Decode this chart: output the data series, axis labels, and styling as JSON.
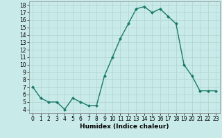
{
  "x": [
    0,
    1,
    2,
    3,
    4,
    5,
    6,
    7,
    8,
    9,
    10,
    11,
    12,
    13,
    14,
    15,
    16,
    17,
    18,
    19,
    20,
    21,
    22,
    23
  ],
  "y": [
    7,
    5.5,
    5,
    5,
    4,
    5.5,
    5,
    4.5,
    4.5,
    8.5,
    11,
    13.5,
    15.5,
    17.5,
    17.8,
    17,
    17.5,
    16.5,
    15.5,
    10,
    8.5,
    6.5,
    6.5,
    6.5
  ],
  "line_color": "#1a7a6a",
  "marker": "D",
  "markersize": 2.0,
  "linewidth": 1.0,
  "bg_color": "#c8eae8",
  "grid_color": "#b0d4d0",
  "xlim": [
    -0.5,
    23.5
  ],
  "ylim": [
    3.5,
    18.5
  ],
  "yticks": [
    4,
    5,
    6,
    7,
    8,
    9,
    10,
    11,
    12,
    13,
    14,
    15,
    16,
    17,
    18
  ],
  "xticks": [
    0,
    1,
    2,
    3,
    4,
    5,
    6,
    7,
    8,
    9,
    10,
    11,
    12,
    13,
    14,
    15,
    16,
    17,
    18,
    19,
    20,
    21,
    22,
    23
  ],
  "xlabel": "Humidex (Indice chaleur)",
  "xlabel_fontsize": 6.5,
  "tick_fontsize": 5.5
}
